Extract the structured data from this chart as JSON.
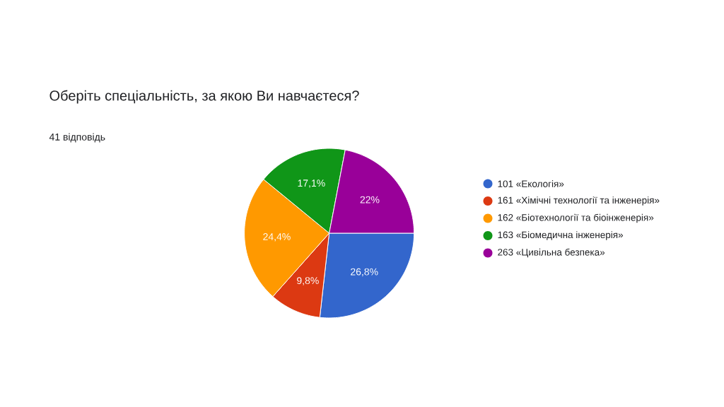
{
  "chart_data": {
    "type": "pie",
    "title": "Оберіть спеціальність, за якою Ви навчаєтеся?",
    "subtitle": "41 відповідь",
    "categories": [
      "101 «Екологія»",
      "161 «Хімічні технології та інженерія»",
      "162 «Біотехнології та біоінженерія»",
      "163 «Біомедична інженерія»",
      "263 «Цивільна безпека»"
    ],
    "values": [
      26.8,
      9.8,
      24.4,
      17.1,
      22
    ],
    "value_labels": [
      "26,8%",
      "9,8%",
      "24,4%",
      "17,1%",
      "22%"
    ],
    "colors": [
      "#3366cc",
      "#dc3912",
      "#ff9900",
      "#109618",
      "#990099"
    ],
    "legend": "right"
  }
}
